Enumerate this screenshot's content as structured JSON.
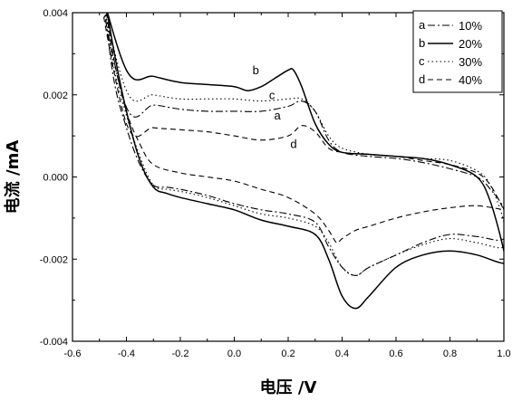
{
  "chart_data": {
    "type": "line",
    "xlabel": "电压 /V",
    "ylabel": "电流 /mA",
    "xlim": [
      -0.6,
      1.0
    ],
    "ylim": [
      -0.004,
      0.004
    ],
    "x_ticks": [
      "-0.6",
      "-0.4",
      "-0.2",
      "0.0",
      "0.2",
      "0.4",
      "0.6",
      "0.8",
      "1.0"
    ],
    "y_ticks": [
      "-0.004",
      "-0.002",
      "0.000",
      "0.002",
      "0.004"
    ],
    "legend_position": "top-right",
    "series": [
      {
        "name": "10%",
        "legend_letter": "a",
        "curve_label": "a",
        "dash": "8 3 2 3",
        "forward": [
          [
            -0.4,
            0.0017
          ],
          [
            -0.3,
            0.00175
          ],
          [
            -0.2,
            0.00165
          ],
          [
            -0.1,
            0.0016
          ],
          [
            0.0,
            0.0016
          ],
          [
            0.1,
            0.0016
          ],
          [
            0.2,
            0.00172
          ],
          [
            0.25,
            0.00185
          ],
          [
            0.3,
            0.0016
          ],
          [
            0.35,
            0.0009
          ],
          [
            0.4,
            0.0006
          ],
          [
            0.5,
            0.0005
          ],
          [
            0.6,
            0.00045
          ],
          [
            0.7,
            0.00035
          ],
          [
            0.8,
            0.0002
          ],
          [
            0.9,
            0.0
          ],
          [
            0.95,
            -0.0003
          ],
          [
            1.0,
            -0.0008
          ]
        ],
        "reverse": [
          [
            1.0,
            -0.0015
          ],
          [
            0.9,
            -0.00145
          ],
          [
            0.8,
            -0.0014
          ],
          [
            0.7,
            -0.0016
          ],
          [
            0.6,
            -0.0019
          ],
          [
            0.5,
            -0.0022
          ],
          [
            0.45,
            -0.0024
          ],
          [
            0.4,
            -0.0022
          ],
          [
            0.35,
            -0.0017
          ],
          [
            0.3,
            -0.0011
          ],
          [
            0.2,
            -0.0009
          ],
          [
            0.1,
            -0.0008
          ],
          [
            0.0,
            -0.00065
          ],
          [
            -0.1,
            -0.00045
          ],
          [
            -0.2,
            -0.0003
          ],
          [
            -0.25,
            -0.00025
          ],
          [
            -0.3,
            -0.0002
          ],
          [
            -0.35,
            0.0003
          ],
          [
            -0.4,
            0.0012
          ],
          [
            -0.45,
            0.0025
          ]
        ]
      },
      {
        "name": "20%",
        "legend_letter": "b",
        "curve_label": "b",
        "dash": "",
        "forward": [
          [
            -0.4,
            0.0026
          ],
          [
            -0.3,
            0.00245
          ],
          [
            -0.2,
            0.0023
          ],
          [
            -0.1,
            0.00225
          ],
          [
            0.0,
            0.0022
          ],
          [
            0.05,
            0.0021
          ],
          [
            0.1,
            0.0022
          ],
          [
            0.15,
            0.0024
          ],
          [
            0.2,
            0.0026
          ],
          [
            0.22,
            0.0026
          ],
          [
            0.25,
            0.0022
          ],
          [
            0.3,
            0.0013
          ],
          [
            0.35,
            0.0008
          ],
          [
            0.4,
            0.0006
          ],
          [
            0.5,
            0.00055
          ],
          [
            0.6,
            0.0005
          ],
          [
            0.7,
            0.00045
          ],
          [
            0.8,
            0.0003
          ],
          [
            0.9,
            0.0
          ],
          [
            0.95,
            -0.0006
          ],
          [
            1.0,
            -0.0018
          ]
        ],
        "reverse": [
          [
            1.0,
            -0.0021
          ],
          [
            0.9,
            -0.0019
          ],
          [
            0.8,
            -0.0018
          ],
          [
            0.7,
            -0.0019
          ],
          [
            0.6,
            -0.0022
          ],
          [
            0.5,
            -0.0029
          ],
          [
            0.45,
            -0.0032
          ],
          [
            0.4,
            -0.0029
          ],
          [
            0.35,
            -0.002
          ],
          [
            0.3,
            -0.0014
          ],
          [
            0.2,
            -0.0012
          ],
          [
            0.1,
            -0.00105
          ],
          [
            0.0,
            -0.0008
          ],
          [
            -0.1,
            -0.00065
          ],
          [
            -0.2,
            -0.0005
          ],
          [
            -0.25,
            -0.0004
          ],
          [
            -0.3,
            -0.00025
          ],
          [
            -0.35,
            0.0004
          ],
          [
            -0.4,
            0.0016
          ],
          [
            -0.45,
            0.0032
          ]
        ]
      },
      {
        "name": "30%",
        "legend_letter": "c",
        "curve_label": "c",
        "dash": "1.5 3",
        "forward": [
          [
            -0.4,
            0.0021
          ],
          [
            -0.3,
            0.002
          ],
          [
            -0.2,
            0.0019
          ],
          [
            -0.1,
            0.0019
          ],
          [
            0.0,
            0.0019
          ],
          [
            0.1,
            0.00185
          ],
          [
            0.2,
            0.0019
          ],
          [
            0.25,
            0.0019
          ],
          [
            0.3,
            0.0016
          ],
          [
            0.35,
            0.001
          ],
          [
            0.4,
            0.0007
          ],
          [
            0.5,
            0.00055
          ],
          [
            0.6,
            0.0005
          ],
          [
            0.7,
            0.00045
          ],
          [
            0.8,
            0.0004
          ],
          [
            0.9,
            0.00015
          ],
          [
            0.95,
            -0.0002
          ],
          [
            1.0,
            -0.0011
          ]
        ],
        "reverse": [
          [
            1.0,
            -0.0017
          ],
          [
            0.9,
            -0.0016
          ],
          [
            0.8,
            -0.0015
          ],
          [
            0.7,
            -0.00165
          ],
          [
            0.6,
            -0.0019
          ],
          [
            0.5,
            -0.0022
          ],
          [
            0.45,
            -0.0024
          ],
          [
            0.4,
            -0.0022
          ],
          [
            0.35,
            -0.0016
          ],
          [
            0.3,
            -0.0012
          ],
          [
            0.2,
            -0.001
          ],
          [
            0.1,
            -0.0009
          ],
          [
            0.0,
            -0.0007
          ],
          [
            -0.1,
            -0.0005
          ],
          [
            -0.2,
            -0.00035
          ],
          [
            -0.25,
            -0.0003
          ],
          [
            -0.3,
            -0.0002
          ],
          [
            -0.35,
            0.0005
          ],
          [
            -0.4,
            0.0015
          ],
          [
            -0.45,
            0.0028
          ]
        ]
      },
      {
        "name": "40%",
        "legend_letter": "d",
        "curve_label": "d",
        "dash": "6 4",
        "forward": [
          [
            -0.4,
            0.0013
          ],
          [
            -0.3,
            0.0012
          ],
          [
            -0.2,
            0.00115
          ],
          [
            -0.1,
            0.0011
          ],
          [
            0.0,
            0.001
          ],
          [
            0.1,
            0.0009
          ],
          [
            0.2,
            0.001
          ],
          [
            0.25,
            0.00125
          ],
          [
            0.3,
            0.0011
          ],
          [
            0.35,
            0.0007
          ],
          [
            0.4,
            0.0006
          ],
          [
            0.5,
            0.00055
          ],
          [
            0.6,
            0.0005
          ],
          [
            0.7,
            0.0004
          ],
          [
            0.8,
            0.0003
          ],
          [
            0.9,
            0.0001
          ],
          [
            0.95,
            -0.0002
          ],
          [
            1.0,
            -0.0008
          ]
        ],
        "reverse": [
          [
            1.0,
            -0.0008
          ],
          [
            0.9,
            -0.0007
          ],
          [
            0.8,
            -0.00075
          ],
          [
            0.7,
            -0.00085
          ],
          [
            0.6,
            -0.001
          ],
          [
            0.5,
            -0.0012
          ],
          [
            0.45,
            -0.0013
          ],
          [
            0.4,
            -0.0015
          ],
          [
            0.38,
            -0.0016
          ],
          [
            0.35,
            -0.0013
          ],
          [
            0.3,
            -0.0009
          ],
          [
            0.2,
            -0.0005
          ],
          [
            0.1,
            -0.0003
          ],
          [
            0.0,
            -0.0001
          ],
          [
            -0.1,
            0.0
          ],
          [
            -0.2,
            0.0001
          ],
          [
            -0.3,
            0.0003
          ],
          [
            -0.35,
            0.0008
          ],
          [
            -0.4,
            0.0016
          ],
          [
            -0.45,
            0.003
          ]
        ]
      }
    ],
    "curve_label_positions_data": [
      {
        "label": "b",
        "x": 0.08,
        "y": 0.0025
      },
      {
        "label": "c",
        "x": 0.14,
        "y": 0.0019
      },
      {
        "label": "a",
        "x": 0.16,
        "y": 0.0014
      },
      {
        "label": "d",
        "x": 0.22,
        "y": 0.0007
      }
    ]
  }
}
